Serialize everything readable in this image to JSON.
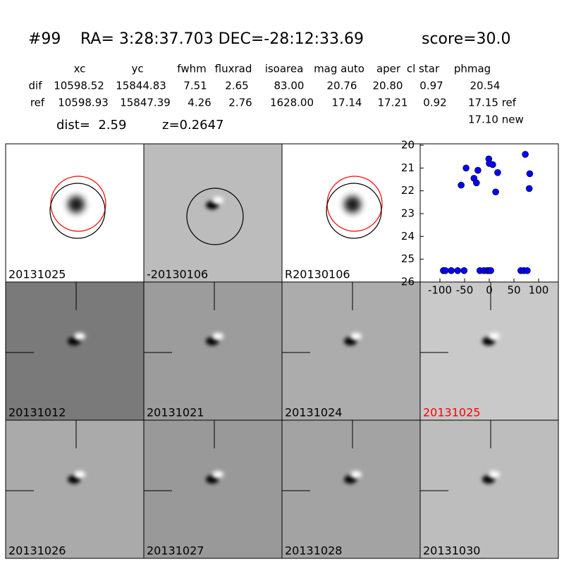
{
  "header": {
    "object": "#99",
    "coords": "RA= 3:28:37.703 DEC=-28:12:33.69",
    "score": "score=30.0"
  },
  "table": {
    "columns": [
      "xc",
      "yc",
      "fwhm",
      "fluxrad",
      "isoarea",
      "mag auto",
      "aper",
      "cl star",
      "phmag"
    ],
    "rows": [
      [
        "dif",
        "10598.52",
        "15844.83",
        "7.51",
        "2.65",
        "83.00",
        "20.76",
        "20.80",
        "0.97",
        "20.54"
      ],
      [
        "ref",
        "10598.93",
        "15847.39",
        "4.26",
        "2.76",
        "1628.00",
        "17.14",
        "17.21",
        "0.92",
        "17.15 ref"
      ]
    ],
    "extra": "17.10 new",
    "dist": "dist=  2.59",
    "z": "z=0.2647"
  },
  "panels": [
    {
      "label": "20131025",
      "background": "#ffffff"
    },
    {
      "label": "-20130106",
      "background": "#bcbcbc"
    },
    {
      "label": "R20130106",
      "background": "#ffffff"
    },
    {
      "label": "20131012",
      "background": "#7a7a7a"
    },
    {
      "label": "20131021",
      "background": "#9c9c9c"
    },
    {
      "label": "20131024",
      "background": "#acacac"
    },
    {
      "label": "20131025",
      "background": "#c9c9c9",
      "label_color": "#ff0000"
    },
    {
      "label": "20131026",
      "background": "#aaaaaa"
    },
    {
      "label": "20131027",
      "background": "#999999"
    },
    {
      "label": "20131028",
      "background": "#a3a3a3"
    },
    {
      "label": "20131030",
      "background": "#bdbdbd"
    }
  ],
  "chart_data": {
    "type": "scatter",
    "color": "#0000ff",
    "x": [
      73,
      -1,
      0,
      7,
      -47,
      -23,
      17,
      82,
      -31,
      -26,
      -57,
      81,
      13,
      -93,
      -89,
      -77,
      -64,
      -51,
      -19,
      -11,
      -4,
      0,
      3,
      64,
      70,
      77
    ],
    "values": [
      20.4,
      20.6,
      20.8,
      20.85,
      21.0,
      21.1,
      21.2,
      21.25,
      21.45,
      21.65,
      21.75,
      21.9,
      22.05,
      25.5,
      25.5,
      25.5,
      25.5,
      25.5,
      25.5,
      25.5,
      25.5,
      25.5,
      25.5,
      25.5,
      25.5,
      25.5
    ],
    "xlim": [
      -140,
      140
    ],
    "ylim": [
      26,
      20
    ],
    "xticks": [
      -100,
      -50,
      0,
      50,
      100
    ],
    "yticks": [
      20,
      21,
      22,
      23,
      24,
      25,
      26
    ]
  }
}
